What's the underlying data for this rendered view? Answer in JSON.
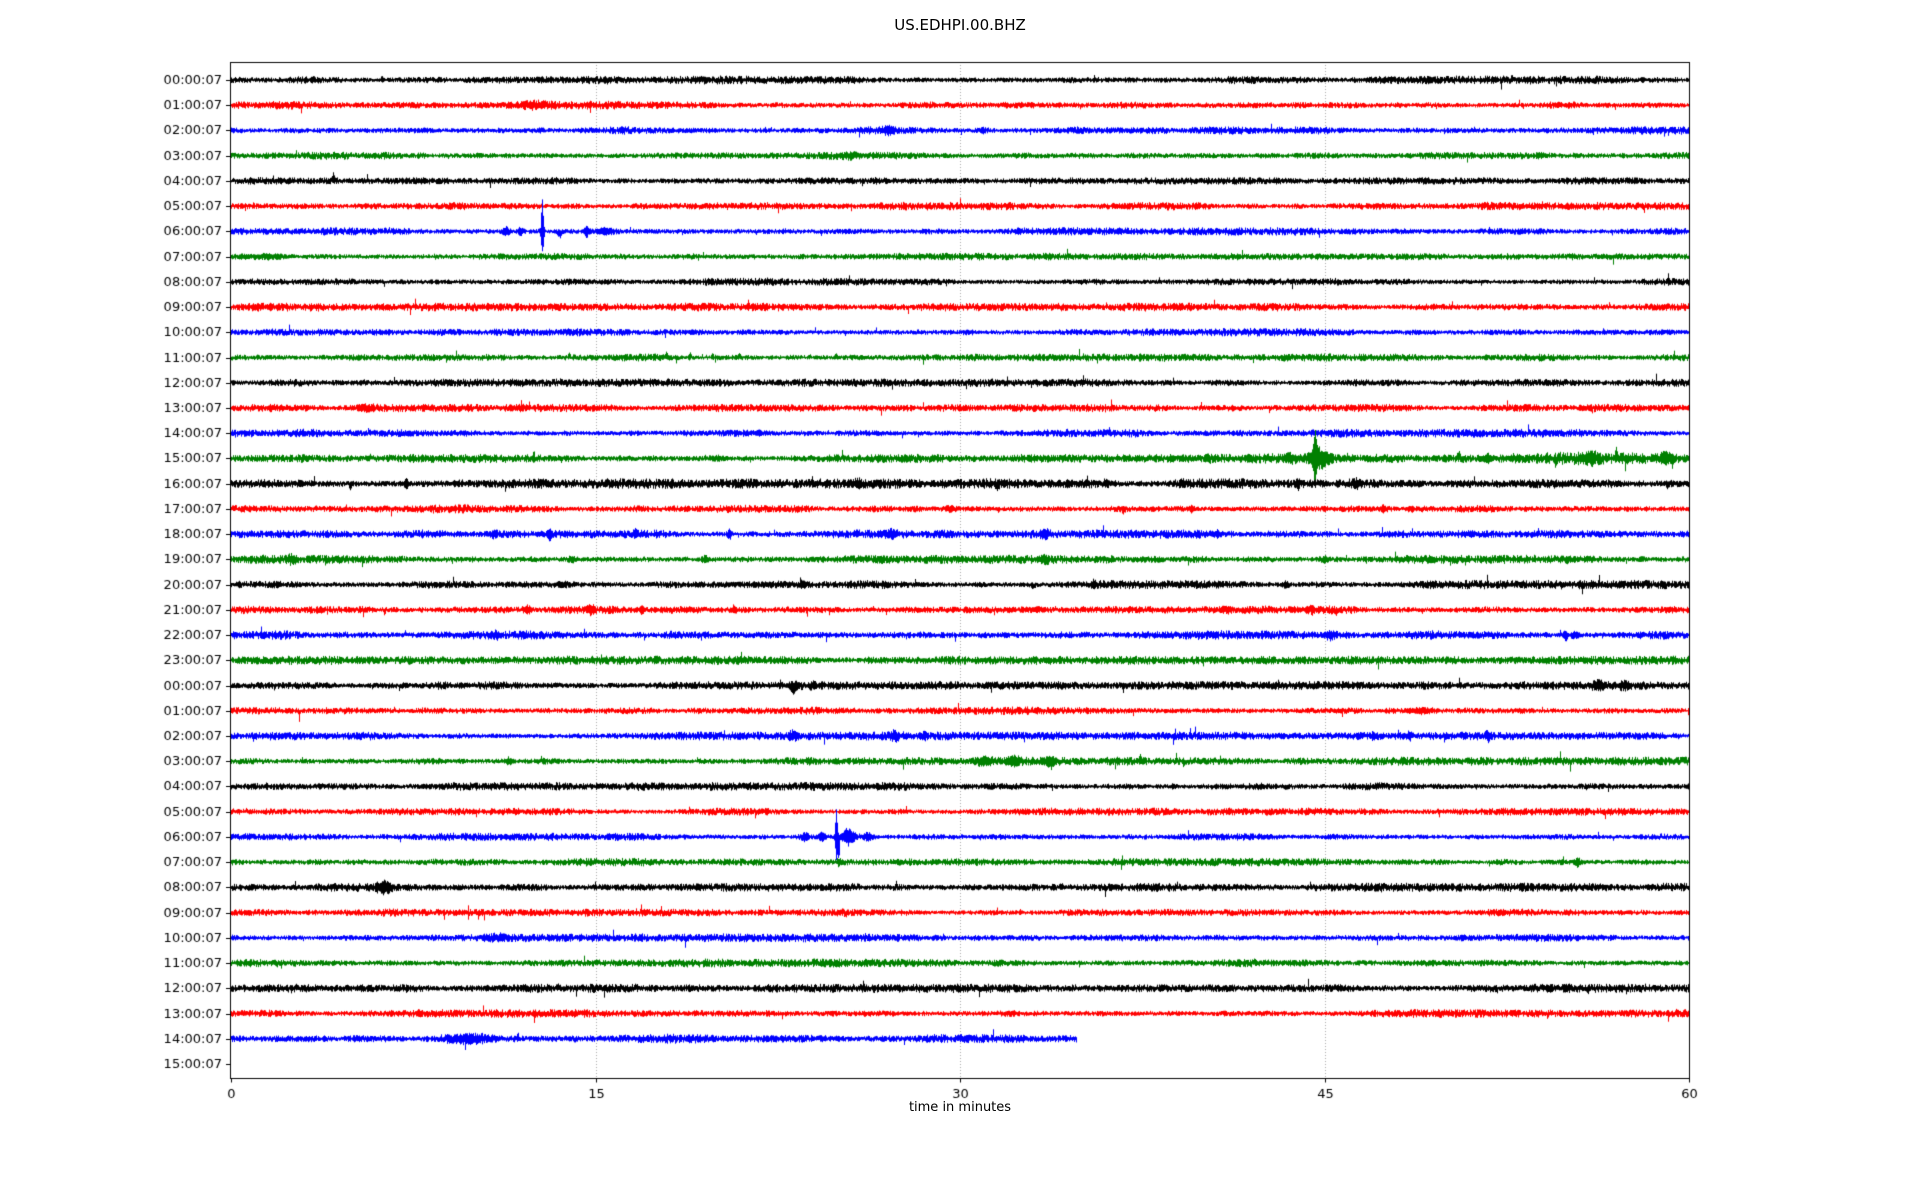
{
  "title": "US.EDHPI.00.BHZ",
  "xlabel": "time in minutes",
  "chart_data": {
    "type": "line",
    "subtype": "helicorder-seismogram",
    "station": "US.EDHPI.00.BHZ",
    "xlabel": "time in minutes",
    "x_range": [
      0,
      60
    ],
    "x_ticks": [
      0,
      15,
      30,
      45,
      60
    ],
    "x_tick_labels": [
      "0",
      "15",
      "30",
      "45",
      "60"
    ],
    "minutes_per_row": 60,
    "grid": {
      "vertical_minutes": [
        15,
        30,
        45
      ],
      "style": "dotted",
      "color": "#aaaaaa"
    },
    "colors": {
      "black": "#000000",
      "red": "#ff0000",
      "blue": "#0000ff",
      "green": "#008000"
    },
    "color_cycle": [
      "black",
      "red",
      "blue",
      "green"
    ],
    "events_format": "[minute, amplitude_px, width_minutes, direction(0=both,1=up,-1=down)]",
    "rows": [
      {
        "label": "00:00:07",
        "color": "#000000",
        "noise": 2.4,
        "end_minute": 60,
        "events": [
          [
            6.2,
            3,
            0.05,
            1
          ],
          [
            52.7,
            2.5,
            0.05,
            1
          ]
        ]
      },
      {
        "label": "01:00:07",
        "color": "#ff0000",
        "noise": 2.4,
        "end_minute": 60,
        "events": [
          [
            12.5,
            2,
            0.4,
            0
          ]
        ]
      },
      {
        "label": "02:00:07",
        "color": "#0000ff",
        "noise": 2.3,
        "end_minute": 60,
        "events": [
          [
            27.0,
            2.5,
            0.25,
            0
          ],
          [
            30.9,
            2,
            0.15,
            0
          ]
        ]
      },
      {
        "label": "03:00:07",
        "color": "#008000",
        "noise": 2.3,
        "end_minute": 60,
        "events": [
          [
            25.5,
            1.5,
            0.3,
            0
          ]
        ]
      },
      {
        "label": "04:00:07",
        "color": "#000000",
        "noise": 2.1,
        "end_minute": 60,
        "events": [
          [
            4.2,
            5.5,
            0.05,
            1
          ]
        ]
      },
      {
        "label": "05:00:07",
        "color": "#ff0000",
        "noise": 2.3,
        "end_minute": 60,
        "events": []
      },
      {
        "label": "06:00:07",
        "color": "#0000ff",
        "noise": 2.3,
        "end_minute": 60,
        "events": [
          [
            11.3,
            4,
            0.15,
            0
          ],
          [
            11.9,
            3,
            0.12,
            0
          ],
          [
            12.8,
            24,
            0.06,
            0
          ],
          [
            12.78,
            16,
            0.03,
            1
          ],
          [
            13.5,
            6,
            0.1,
            -1
          ],
          [
            14.6,
            5,
            0.1,
            0
          ],
          [
            15.4,
            3,
            0.3,
            0
          ]
        ]
      },
      {
        "label": "07:00:07",
        "color": "#008000",
        "noise": 2.3,
        "end_minute": 60,
        "events": [
          [
            1.5,
            1.5,
            0.8,
            0
          ]
        ]
      },
      {
        "label": "08:00:07",
        "color": "#000000",
        "noise": 2.2,
        "end_minute": 60,
        "events": []
      },
      {
        "label": "09:00:07",
        "color": "#ff0000",
        "noise": 2.4,
        "end_minute": 60,
        "events": []
      },
      {
        "label": "10:00:07",
        "color": "#0000ff",
        "noise": 2.3,
        "end_minute": 60,
        "events": []
      },
      {
        "label": "11:00:07",
        "color": "#008000",
        "noise": 2.2,
        "end_minute": 60,
        "events": [
          [
            13.9,
            2.5,
            0.05,
            1
          ],
          [
            17.9,
            4,
            0.05,
            1
          ],
          [
            18.9,
            5,
            0.05,
            1
          ],
          [
            19.8,
            2.5,
            0.05,
            1
          ],
          [
            20.9,
            3,
            0.05,
            1
          ],
          [
            23.8,
            2.5,
            0.05,
            1
          ],
          [
            24.9,
            3,
            0.05,
            1
          ]
        ]
      },
      {
        "label": "12:00:07",
        "color": "#000000",
        "noise": 2.3,
        "end_minute": 60,
        "events": []
      },
      {
        "label": "13:00:07",
        "color": "#ff0000",
        "noise": 2.3,
        "end_minute": 60,
        "events": [
          [
            5.5,
            2,
            0.3,
            0
          ]
        ]
      },
      {
        "label": "14:00:07",
        "color": "#0000ff",
        "noise": 2.4,
        "end_minute": 60,
        "events": []
      },
      {
        "label": "15:00:07",
        "color": "#008000",
        "noise": 2.5,
        "end_minute": 60,
        "noise_boost": [
          [
            40,
            60,
            1.5
          ]
        ],
        "events": [
          [
            20,
            2,
            0.3,
            0
          ],
          [
            43.6,
            3,
            0.25,
            0
          ],
          [
            44.6,
            21,
            0.08,
            0
          ],
          [
            44.8,
            9,
            0.4,
            0
          ],
          [
            50.5,
            4.5,
            0.08,
            1
          ],
          [
            51.7,
            3.5,
            0.1,
            0
          ],
          [
            54.5,
            4.5,
            0.07,
            -1
          ],
          [
            55.9,
            4,
            0.3,
            0
          ],
          [
            57.0,
            5.5,
            0.05,
            1
          ],
          [
            59.0,
            5,
            0.2,
            0
          ],
          [
            59.3,
            6,
            0.04,
            -1
          ]
        ]
      },
      {
        "label": "16:00:07",
        "color": "#000000",
        "noise": 2.9,
        "end_minute": 60,
        "events": [
          [
            4.9,
            6.5,
            0.05,
            -1
          ],
          [
            7.2,
            3.5,
            0.1,
            0
          ],
          [
            25.8,
            2.5,
            0.15,
            0
          ],
          [
            31.5,
            2.5,
            0.1,
            -1
          ],
          [
            36.0,
            2,
            0.1,
            0
          ],
          [
            43.9,
            3.5,
            0.06,
            0
          ],
          [
            46.3,
            3,
            0.15,
            0
          ],
          [
            59.1,
            3,
            0.05,
            -1
          ]
        ]
      },
      {
        "label": "17:00:07",
        "color": "#ff0000",
        "noise": 2.6,
        "end_minute": 60,
        "events": [
          [
            29.6,
            2.5,
            0.2,
            0
          ],
          [
            36.7,
            3,
            0.07,
            -1
          ],
          [
            39.5,
            2.5,
            0.1,
            0
          ],
          [
            47.4,
            2.5,
            0.12,
            0
          ],
          [
            48.5,
            2,
            0.15,
            0
          ]
        ]
      },
      {
        "label": "18:00:07",
        "color": "#0000ff",
        "noise": 2.5,
        "end_minute": 60,
        "events": [
          [
            10.8,
            2.5,
            0.15,
            0
          ],
          [
            13.1,
            3.5,
            0.1,
            0
          ],
          [
            16.6,
            2.5,
            0.1,
            0
          ],
          [
            20.5,
            3.5,
            0.1,
            0
          ],
          [
            27.2,
            2.5,
            0.15,
            0
          ],
          [
            33.5,
            3,
            0.15,
            0
          ],
          [
            40.5,
            2,
            0.2,
            0
          ]
        ]
      },
      {
        "label": "19:00:07",
        "color": "#008000",
        "noise": 2.5,
        "end_minute": 60,
        "events": [
          [
            2.5,
            2.8,
            0.15,
            0
          ],
          [
            14,
            2.2,
            0.15,
            0
          ],
          [
            19.5,
            2.8,
            0.12,
            0
          ],
          [
            33.5,
            2.8,
            0.15,
            0
          ],
          [
            45,
            2.5,
            0.15,
            0
          ],
          [
            55,
            2,
            0.2,
            0
          ]
        ]
      },
      {
        "label": "20:00:07",
        "color": "#000000",
        "noise": 2.5,
        "end_minute": 60,
        "events": [
          [
            23.5,
            2.2,
            0.15,
            0
          ],
          [
            33,
            2.5,
            0.1,
            -1
          ],
          [
            35.5,
            2.8,
            0.12,
            0
          ],
          [
            43.4,
            2.5,
            0.12,
            0
          ]
        ]
      },
      {
        "label": "21:00:07",
        "color": "#ff0000",
        "noise": 2.5,
        "end_minute": 60,
        "events": [
          [
            6.3,
            3.5,
            0.04,
            -1
          ],
          [
            12.2,
            3,
            0.15,
            0
          ],
          [
            14.8,
            3.5,
            0.15,
            0
          ],
          [
            16.9,
            3,
            0.1,
            0
          ],
          [
            20.7,
            2.8,
            0.1,
            0
          ],
          [
            41,
            2.2,
            0.15,
            0
          ],
          [
            44.5,
            2.2,
            0.1,
            0
          ]
        ]
      },
      {
        "label": "22:00:07",
        "color": "#0000ff",
        "noise": 2.7,
        "end_minute": 60,
        "events": [
          [
            10.9,
            2,
            0.1,
            0
          ],
          [
            45.2,
            2.5,
            0.15,
            0
          ],
          [
            54.9,
            4.5,
            0.08,
            0
          ],
          [
            55.3,
            2.5,
            0.2,
            0
          ]
        ]
      },
      {
        "label": "23:00:07",
        "color": "#008000",
        "noise": 2.5,
        "end_minute": 60,
        "events": []
      },
      {
        "label": "00:00:07",
        "color": "#000000",
        "noise": 2.4,
        "end_minute": 60,
        "events": [
          [
            23.1,
            4.5,
            0.1,
            -1
          ],
          [
            23.2,
            2.5,
            0.2,
            0
          ],
          [
            23.9,
            2,
            0.1,
            0
          ],
          [
            56.3,
            3,
            0.25,
            0
          ],
          [
            57.3,
            2.5,
            0.2,
            0
          ]
        ]
      },
      {
        "label": "01:00:07",
        "color": "#ff0000",
        "noise": 2.4,
        "end_minute": 60,
        "events": [
          [
            2.8,
            13,
            0.03,
            -1
          ],
          [
            49,
            2.2,
            0.5,
            0
          ]
        ]
      },
      {
        "label": "02:00:07",
        "color": "#0000ff",
        "noise": 2.4,
        "end_minute": 60,
        "events": [
          [
            23.1,
            2.8,
            0.15,
            0
          ],
          [
            27.3,
            3.5,
            0.2,
            0
          ],
          [
            28.5,
            2.2,
            0.1,
            0
          ],
          [
            47.0,
            3,
            0.1,
            0
          ],
          [
            48.5,
            2.5,
            0.1,
            0
          ],
          [
            51.7,
            4,
            0.1,
            0
          ]
        ]
      },
      {
        "label": "03:00:07",
        "color": "#008000",
        "noise": 2.4,
        "end_minute": 60,
        "events": [
          [
            11.4,
            3.2,
            0.12,
            0
          ],
          [
            31.0,
            2.8,
            0.3,
            0
          ],
          [
            32.2,
            3.5,
            0.3,
            0
          ],
          [
            33.7,
            3.5,
            0.25,
            0
          ],
          [
            37.4,
            5,
            0.05,
            1
          ],
          [
            39.2,
            5,
            0.04,
            -1
          ]
        ]
      },
      {
        "label": "04:00:07",
        "color": "#000000",
        "noise": 2.4,
        "end_minute": 60,
        "events": []
      },
      {
        "label": "05:00:07",
        "color": "#ff0000",
        "noise": 2.2,
        "end_minute": 60,
        "events": []
      },
      {
        "label": "06:00:07",
        "color": "#0000ff",
        "noise": 2.3,
        "end_minute": 60,
        "events": [
          [
            23.6,
            3.5,
            0.15,
            0
          ],
          [
            24.3,
            5,
            0.12,
            0
          ],
          [
            24.9,
            38,
            0.05,
            0
          ],
          [
            25.0,
            24,
            0.03,
            -1
          ],
          [
            25.4,
            8,
            0.25,
            0
          ],
          [
            26.2,
            3,
            0.2,
            0
          ]
        ]
      },
      {
        "label": "07:00:07",
        "color": "#008000",
        "noise": 2.3,
        "end_minute": 60,
        "events": [
          [
            25.0,
            2.5,
            0.1,
            0
          ],
          [
            55.4,
            3.5,
            0.12,
            0
          ]
        ]
      },
      {
        "label": "08:00:07",
        "color": "#000000",
        "noise": 2.5,
        "end_minute": 60,
        "events": [
          [
            6.3,
            3.8,
            0.3,
            0
          ]
        ]
      },
      {
        "label": "09:00:07",
        "color": "#ff0000",
        "noise": 2.2,
        "end_minute": 60,
        "events": [
          [
            25.3,
            3,
            0.05,
            -1
          ]
        ]
      },
      {
        "label": "10:00:07",
        "color": "#0000ff",
        "noise": 2.4,
        "end_minute": 60,
        "events": [
          [
            11,
            1.5,
            0.5,
            0
          ]
        ]
      },
      {
        "label": "11:00:07",
        "color": "#008000",
        "noise": 2.4,
        "end_minute": 60,
        "events": []
      },
      {
        "label": "12:00:07",
        "color": "#000000",
        "noise": 2.5,
        "end_minute": 60,
        "events": []
      },
      {
        "label": "13:00:07",
        "color": "#ff0000",
        "noise": 2.4,
        "end_minute": 60,
        "events": []
      },
      {
        "label": "14:00:07",
        "color": "#0000ff",
        "noise": 2.5,
        "end_minute": 34.8,
        "noise_boost": [
          [
            8,
            20,
            1.25
          ]
        ],
        "events": [
          [
            9.8,
            2,
            0.8,
            0
          ],
          [
            11.8,
            2.8,
            0.05,
            1
          ]
        ]
      },
      {
        "label": "15:00:07",
        "color": "#008000",
        "noise": 0,
        "end_minute": 0,
        "events": []
      }
    ]
  }
}
